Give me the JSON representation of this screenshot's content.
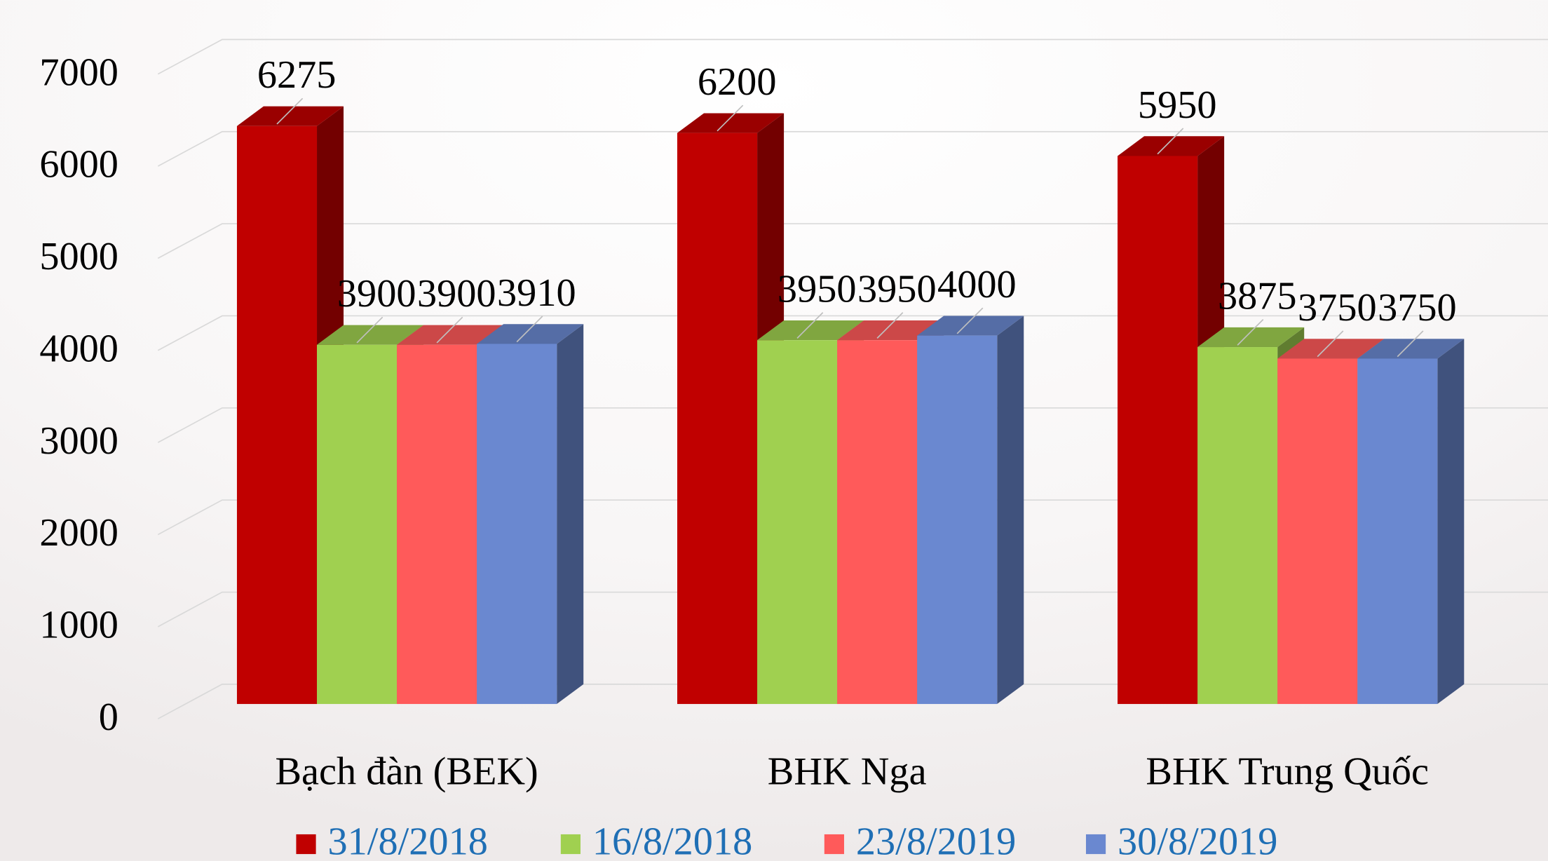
{
  "chart_data": {
    "type": "bar3d",
    "categories": [
      "Bạch đàn (BEK)",
      "BHK Nga",
      "BHK Trung Quốc"
    ],
    "series": [
      {
        "name": "31/8/2018",
        "color": "#c00000",
        "values": [
          6275,
          6200,
          5950
        ]
      },
      {
        "name": "16/8/2018",
        "color": "#a0d050",
        "values": [
          3900,
          3950,
          3875
        ]
      },
      {
        "name": "23/8/2019",
        "color": "#ff5a5a",
        "values": [
          3900,
          3950,
          3750
        ]
      },
      {
        "name": "30/8/2019",
        "color": "#6a88d0",
        "values": [
          3910,
          4000,
          3750
        ]
      }
    ],
    "ylim": [
      0,
      7000
    ],
    "yticks": [
      0,
      1000,
      2000,
      3000,
      4000,
      5000,
      6000,
      7000
    ],
    "grid": true,
    "legend": "bottom"
  }
}
